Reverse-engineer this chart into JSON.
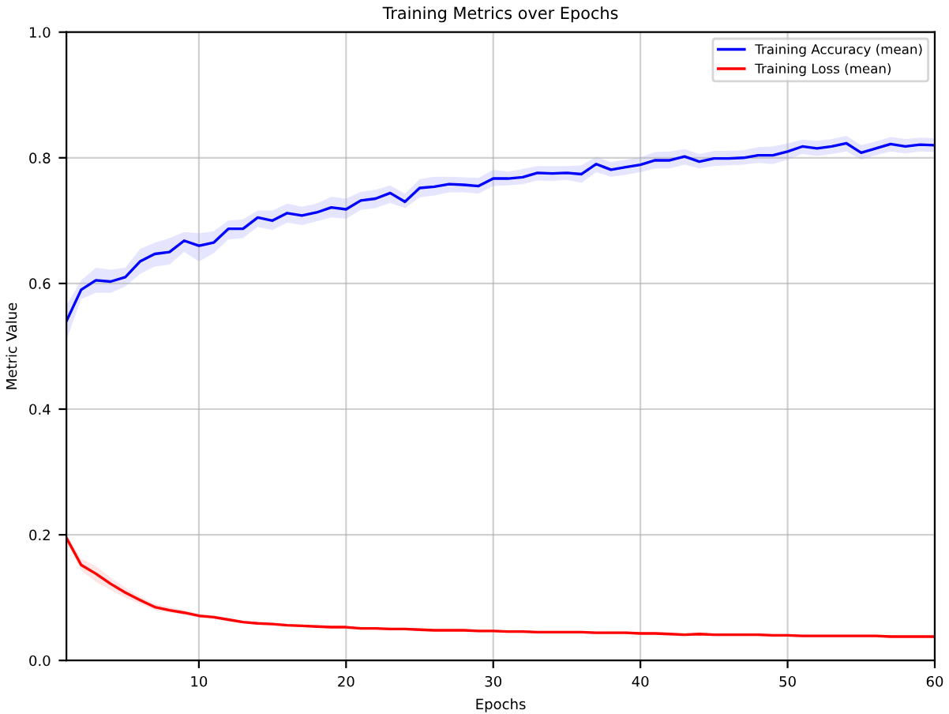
{
  "chart_data": {
    "type": "line",
    "title": "Training Metrics over Epochs",
    "xlabel": "Epochs",
    "ylabel": "Metric Value",
    "x": [
      1,
      2,
      3,
      4,
      5,
      6,
      7,
      8,
      9,
      10,
      11,
      12,
      13,
      14,
      15,
      16,
      17,
      18,
      19,
      20,
      21,
      22,
      23,
      24,
      25,
      26,
      27,
      28,
      29,
      30,
      31,
      32,
      33,
      34,
      35,
      36,
      37,
      38,
      39,
      40,
      41,
      42,
      43,
      44,
      45,
      46,
      47,
      48,
      49,
      50,
      51,
      52,
      53,
      54,
      55,
      56,
      57,
      58,
      59,
      60
    ],
    "series": [
      {
        "name": "Training Accuracy (mean)",
        "color": "#0000ff",
        "values": [
          0.54,
          0.59,
          0.605,
          0.603,
          0.61,
          0.635,
          0.647,
          0.65,
          0.668,
          0.66,
          0.665,
          0.687,
          0.687,
          0.705,
          0.7,
          0.712,
          0.708,
          0.713,
          0.721,
          0.718,
          0.732,
          0.735,
          0.744,
          0.73,
          0.752,
          0.754,
          0.758,
          0.757,
          0.755,
          0.767,
          0.767,
          0.769,
          0.776,
          0.775,
          0.776,
          0.774,
          0.79,
          0.781,
          0.785,
          0.789,
          0.796,
          0.796,
          0.802,
          0.794,
          0.799,
          0.799,
          0.8,
          0.804,
          0.804,
          0.81,
          0.818,
          0.815,
          0.818,
          0.823,
          0.808,
          0.815,
          0.822,
          0.818,
          0.821,
          0.82
        ],
        "lower": [
          0.51,
          0.575,
          0.585,
          0.585,
          0.595,
          0.615,
          0.627,
          0.63,
          0.65,
          0.635,
          0.648,
          0.67,
          0.672,
          0.69,
          0.685,
          0.697,
          0.693,
          0.699,
          0.705,
          0.703,
          0.717,
          0.72,
          0.728,
          0.72,
          0.737,
          0.74,
          0.745,
          0.745,
          0.743,
          0.755,
          0.756,
          0.758,
          0.764,
          0.763,
          0.765,
          0.76,
          0.777,
          0.77,
          0.773,
          0.777,
          0.783,
          0.783,
          0.789,
          0.783,
          0.787,
          0.788,
          0.789,
          0.792,
          0.79,
          0.797,
          0.806,
          0.803,
          0.806,
          0.81,
          0.797,
          0.804,
          0.81,
          0.807,
          0.81,
          0.809
        ],
        "upper": [
          0.565,
          0.605,
          0.625,
          0.622,
          0.625,
          0.655,
          0.665,
          0.672,
          0.682,
          0.68,
          0.683,
          0.7,
          0.702,
          0.716,
          0.716,
          0.727,
          0.722,
          0.727,
          0.738,
          0.735,
          0.746,
          0.749,
          0.756,
          0.743,
          0.766,
          0.77,
          0.77,
          0.769,
          0.768,
          0.781,
          0.778,
          0.782,
          0.787,
          0.787,
          0.787,
          0.788,
          0.802,
          0.793,
          0.797,
          0.801,
          0.809,
          0.81,
          0.814,
          0.806,
          0.811,
          0.811,
          0.812,
          0.817,
          0.818,
          0.823,
          0.829,
          0.827,
          0.83,
          0.835,
          0.82,
          0.826,
          0.833,
          0.83,
          0.832,
          0.831
        ]
      },
      {
        "name": "Training Loss (mean)",
        "color": "#ff0000",
        "values": [
          0.195,
          0.152,
          0.138,
          0.122,
          0.108,
          0.096,
          0.085,
          0.08,
          0.076,
          0.071,
          0.069,
          0.065,
          0.061,
          0.059,
          0.058,
          0.056,
          0.055,
          0.054,
          0.053,
          0.053,
          0.051,
          0.051,
          0.05,
          0.05,
          0.049,
          0.048,
          0.048,
          0.048,
          0.047,
          0.047,
          0.046,
          0.046,
          0.045,
          0.045,
          0.045,
          0.045,
          0.044,
          0.044,
          0.044,
          0.043,
          0.043,
          0.042,
          0.041,
          0.042,
          0.041,
          0.041,
          0.041,
          0.041,
          0.04,
          0.04,
          0.039,
          0.039,
          0.039,
          0.039,
          0.039,
          0.039,
          0.038,
          0.038,
          0.038,
          0.038
        ],
        "lower": [
          0.19,
          0.143,
          0.125,
          0.112,
          0.1,
          0.09,
          0.08,
          0.076,
          0.073,
          0.068,
          0.066,
          0.063,
          0.059,
          0.057,
          0.056,
          0.054,
          0.053,
          0.052,
          0.051,
          0.051,
          0.049,
          0.049,
          0.048,
          0.048,
          0.047,
          0.046,
          0.046,
          0.046,
          0.045,
          0.045,
          0.044,
          0.044,
          0.043,
          0.043,
          0.043,
          0.043,
          0.042,
          0.042,
          0.042,
          0.041,
          0.041,
          0.04,
          0.039,
          0.04,
          0.039,
          0.039,
          0.039,
          0.039,
          0.038,
          0.038,
          0.037,
          0.037,
          0.037,
          0.037,
          0.037,
          0.037,
          0.036,
          0.036,
          0.036,
          0.036
        ],
        "upper": [
          0.2,
          0.162,
          0.15,
          0.132,
          0.116,
          0.102,
          0.09,
          0.085,
          0.08,
          0.074,
          0.072,
          0.067,
          0.063,
          0.061,
          0.06,
          0.058,
          0.057,
          0.056,
          0.055,
          0.055,
          0.053,
          0.053,
          0.052,
          0.052,
          0.051,
          0.05,
          0.05,
          0.05,
          0.049,
          0.049,
          0.048,
          0.048,
          0.047,
          0.047,
          0.047,
          0.047,
          0.046,
          0.046,
          0.046,
          0.045,
          0.045,
          0.044,
          0.043,
          0.044,
          0.043,
          0.043,
          0.043,
          0.043,
          0.042,
          0.042,
          0.041,
          0.041,
          0.041,
          0.041,
          0.041,
          0.041,
          0.04,
          0.04,
          0.04,
          0.04
        ]
      }
    ],
    "xlim": [
      1,
      60
    ],
    "xticks": [
      10,
      20,
      30,
      40,
      50,
      60
    ],
    "ylim": [
      0,
      1
    ],
    "yticks": [
      {
        "value": 0,
        "label": "0.0"
      },
      0.2,
      0.4,
      0.6,
      0.8,
      {
        "value": 1,
        "label": "1.0"
      }
    ],
    "grid": true,
    "legend": "top right",
    "line_style": "solid",
    "marker": "none"
  }
}
